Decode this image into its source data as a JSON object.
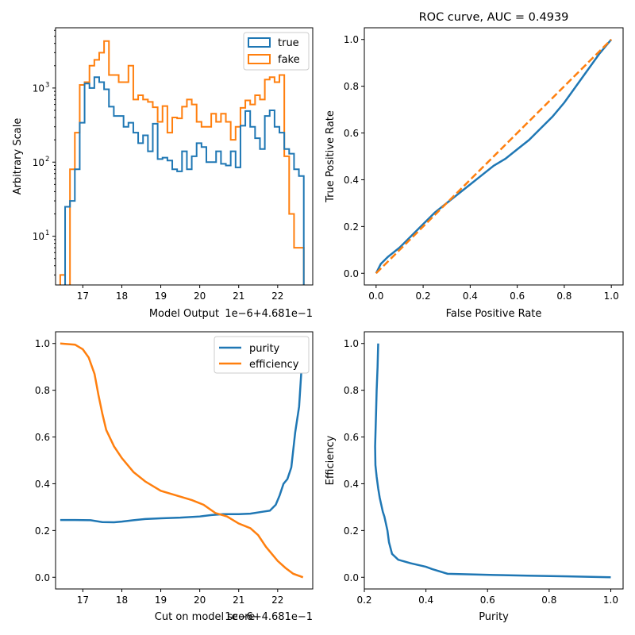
{
  "colors": {
    "true": "#1f77b4",
    "fake": "#ff7f0e"
  },
  "chart_data": [
    {
      "type": "histogram",
      "xlabel": "Model Output",
      "ylabel": "Arbitrary Scale",
      "offset_label": "1e−6+4.681e−1",
      "xlim": [
        16.3,
        22.9
      ],
      "ylim": [
        2.2,
        6500
      ],
      "yscale": "log",
      "xticks": [
        17,
        18,
        19,
        20,
        21,
        22
      ],
      "yticks": [
        {
          "value": 10,
          "label": "10"
        },
        {
          "value": 100,
          "label": "10"
        },
        {
          "value": 1000,
          "label": "10"
        }
      ],
      "ytick_exponents": [
        "1",
        "2",
        "3"
      ],
      "legend": {
        "placement": "upper right",
        "entries": [
          "true",
          "fake"
        ]
      },
      "bin_edges": [
        16.42,
        16.545,
        16.67,
        16.795,
        16.92,
        17.045,
        17.17,
        17.295,
        17.42,
        17.545,
        17.67,
        17.795,
        17.92,
        18.045,
        18.17,
        18.295,
        18.42,
        18.545,
        18.67,
        18.795,
        18.92,
        19.045,
        19.17,
        19.295,
        19.42,
        19.545,
        19.67,
        19.795,
        19.92,
        20.045,
        20.17,
        20.295,
        20.42,
        20.545,
        20.67,
        20.795,
        20.92,
        21.045,
        21.17,
        21.295,
        21.42,
        21.545,
        21.67,
        21.795,
        21.92,
        22.045,
        22.17,
        22.295,
        22.42,
        22.545,
        22.67
      ],
      "series": [
        {
          "name": "true",
          "values": [
            1.5,
            25,
            30,
            80,
            340,
            1150,
            1000,
            1400,
            1200,
            960,
            560,
            420,
            420,
            300,
            340,
            250,
            180,
            230,
            140,
            330,
            110,
            115,
            105,
            80,
            75,
            140,
            80,
            120,
            180,
            160,
            100,
            100,
            140,
            95,
            90,
            140,
            85,
            310,
            490,
            300,
            210,
            150,
            420,
            500,
            300,
            250,
            150,
            130,
            80,
            65
          ]
        },
        {
          "name": "fake",
          "values": [
            3,
            2,
            80,
            250,
            1100,
            1200,
            2000,
            2400,
            3000,
            4300,
            1500,
            1500,
            1200,
            1200,
            2000,
            700,
            800,
            700,
            650,
            550,
            350,
            570,
            250,
            400,
            390,
            560,
            700,
            600,
            350,
            300,
            300,
            450,
            350,
            450,
            350,
            200,
            300,
            540,
            680,
            600,
            800,
            700,
            1300,
            1400,
            1200,
            1500,
            120,
            20,
            7,
            7
          ]
        }
      ]
    },
    {
      "type": "line",
      "title": "ROC curve, AUC = 0.4939",
      "xlabel": "False Positive Rate",
      "ylabel": "True Positive Rate",
      "xlim": [
        -0.05,
        1.05
      ],
      "ylim": [
        -0.05,
        1.05
      ],
      "xticks": [
        0.0,
        0.2,
        0.4,
        0.6,
        0.8,
        1.0
      ],
      "yticks": [
        0.0,
        0.2,
        0.4,
        0.6,
        0.8,
        1.0
      ],
      "series": [
        {
          "name": "roc",
          "x": [
            0,
            0.02,
            0.05,
            0.1,
            0.15,
            0.2,
            0.25,
            0.3,
            0.35,
            0.4,
            0.45,
            0.5,
            0.55,
            0.6,
            0.65,
            0.7,
            0.75,
            0.8,
            0.85,
            0.9,
            0.95,
            1.0
          ],
          "y": [
            0,
            0.04,
            0.07,
            0.11,
            0.16,
            0.21,
            0.26,
            0.3,
            0.34,
            0.38,
            0.42,
            0.46,
            0.49,
            0.53,
            0.57,
            0.62,
            0.67,
            0.73,
            0.8,
            0.87,
            0.94,
            1.0
          ]
        },
        {
          "name": "diagonal",
          "x": [
            0,
            1
          ],
          "y": [
            0,
            1
          ]
        }
      ]
    },
    {
      "type": "line",
      "xlabel": "Cut on model score",
      "offset_label": "1e−6+4.681e−1",
      "xlim": [
        16.3,
        22.9
      ],
      "ylim": [
        -0.05,
        1.05
      ],
      "xticks": [
        17,
        18,
        19,
        20,
        21,
        22
      ],
      "yticks": [
        0.0,
        0.2,
        0.4,
        0.6,
        0.8,
        1.0
      ],
      "legend": {
        "placement": "upper right",
        "entries": [
          "purity",
          "efficiency"
        ]
      },
      "series": [
        {
          "name": "purity",
          "x": [
            16.42,
            16.8,
            17.2,
            17.5,
            17.8,
            18.0,
            18.3,
            18.6,
            19.0,
            19.5,
            20.0,
            20.3,
            20.6,
            21.0,
            21.3,
            21.6,
            21.8,
            21.95,
            22.05,
            22.15,
            22.25,
            22.35,
            22.45,
            22.55,
            22.6,
            22.65
          ],
          "y": [
            0.245,
            0.245,
            0.244,
            0.236,
            0.235,
            0.238,
            0.244,
            0.249,
            0.252,
            0.255,
            0.26,
            0.266,
            0.27,
            0.27,
            0.272,
            0.28,
            0.285,
            0.31,
            0.35,
            0.4,
            0.42,
            0.47,
            0.62,
            0.73,
            0.86,
            1.0
          ]
        },
        {
          "name": "efficiency",
          "x": [
            16.42,
            16.8,
            17.0,
            17.15,
            17.3,
            17.4,
            17.5,
            17.6,
            17.8,
            18.0,
            18.3,
            18.6,
            19.0,
            19.4,
            19.8,
            20.1,
            20.4,
            20.7,
            21.0,
            21.3,
            21.5,
            21.7,
            21.85,
            22.0,
            22.2,
            22.4,
            22.65
          ],
          "y": [
            1.0,
            0.995,
            0.975,
            0.94,
            0.87,
            0.78,
            0.7,
            0.63,
            0.56,
            0.51,
            0.45,
            0.41,
            0.37,
            0.35,
            0.33,
            0.31,
            0.275,
            0.26,
            0.23,
            0.21,
            0.18,
            0.13,
            0.1,
            0.07,
            0.04,
            0.015,
            0.0
          ]
        }
      ]
    },
    {
      "type": "line",
      "xlabel": "Purity",
      "ylabel": "Efficiency",
      "xlim": [
        0.2,
        1.04
      ],
      "ylim": [
        -0.05,
        1.05
      ],
      "xticks": [
        0.2,
        0.4,
        0.6,
        0.8,
        1.0
      ],
      "yticks": [
        0.0,
        0.2,
        0.4,
        0.6,
        0.8,
        1.0
      ],
      "series": [
        {
          "name": "efficiency-vs-purity",
          "x": [
            0.245,
            0.243,
            0.24,
            0.238,
            0.235,
            0.236,
            0.24,
            0.245,
            0.25,
            0.255,
            0.26,
            0.265,
            0.27,
            0.275,
            0.28,
            0.29,
            0.31,
            0.35,
            0.4,
            0.42,
            0.47,
            0.62,
            0.73,
            0.86,
            1.0
          ],
          "y": [
            1.0,
            0.9,
            0.8,
            0.7,
            0.56,
            0.48,
            0.43,
            0.38,
            0.34,
            0.31,
            0.28,
            0.26,
            0.23,
            0.2,
            0.15,
            0.1,
            0.075,
            0.06,
            0.045,
            0.035,
            0.015,
            0.01,
            0.007,
            0.004,
            0.0
          ]
        }
      ]
    }
  ]
}
